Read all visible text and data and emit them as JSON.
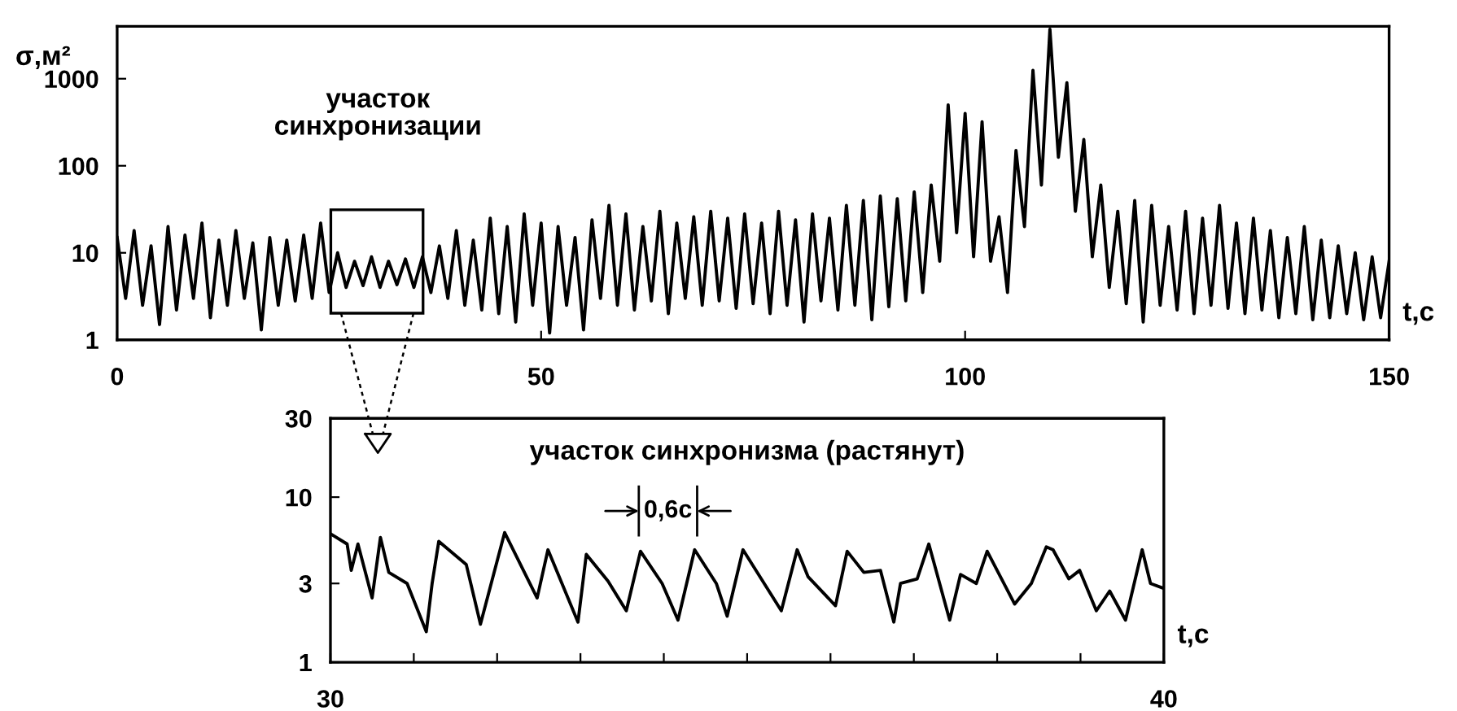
{
  "chart_data": [
    {
      "type": "line",
      "xlabel": "t,с",
      "ylabel": "σ,м²",
      "log": "y",
      "xlim": [
        0,
        150
      ],
      "xticks": [
        0,
        50,
        100,
        150
      ],
      "ylim": [
        1,
        4000
      ],
      "yticks": [
        1,
        10,
        100,
        1000
      ],
      "annotations": [
        "участок\nсинхронизации"
      ],
      "x": [
        0,
        1,
        2,
        3,
        4,
        5,
        6,
        7,
        8,
        9,
        10,
        11,
        12,
        13,
        14,
        15,
        16,
        17,
        18,
        19,
        20,
        21,
        22,
        23,
        24,
        25,
        26,
        27,
        28,
        29,
        30,
        31,
        32,
        33,
        34,
        35,
        36,
        37,
        38,
        39,
        40,
        41,
        42,
        43,
        44,
        45,
        46,
        47,
        48,
        49,
        50,
        51,
        52,
        53,
        54,
        55,
        56,
        57,
        58,
        59,
        60,
        61,
        62,
        63,
        64,
        65,
        66,
        67,
        68,
        69,
        70,
        71,
        72,
        73,
        74,
        75,
        76,
        77,
        78,
        79,
        80,
        81,
        82,
        83,
        84,
        85,
        86,
        87,
        88,
        89,
        90,
        91,
        92,
        93,
        94,
        95,
        96,
        97,
        98,
        99,
        100,
        101,
        102,
        103,
        104,
        105,
        106,
        107,
        108,
        109,
        110,
        111,
        112,
        113,
        114,
        115,
        116,
        117,
        118,
        119,
        120,
        121,
        122,
        123,
        124,
        125,
        126,
        127,
        128,
        129,
        130,
        131,
        132,
        133,
        134,
        135,
        136,
        137,
        138,
        139,
        140,
        141,
        142,
        143,
        144,
        145,
        146,
        147,
        148,
        149,
        150
      ],
      "series": [
        {
          "color": "#000000",
          "values": [
            15,
            3,
            18,
            2.5,
            12,
            1.5,
            20,
            2.2,
            16,
            3,
            22,
            1.8,
            14,
            2.5,
            18,
            3,
            13,
            1.3,
            15,
            2.5,
            14,
            2.8,
            16,
            3,
            22,
            3.5,
            10,
            4,
            8,
            4.2,
            9,
            4,
            8,
            4.3,
            8.5,
            4,
            9,
            3.5,
            12,
            3,
            18,
            2.5,
            14,
            2.2,
            25,
            2,
            20,
            1.6,
            28,
            2.5,
            22,
            1.2,
            20,
            2.5,
            15,
            1.3,
            24,
            3,
            35,
            2.5,
            28,
            2.2,
            20,
            2.8,
            30,
            2,
            22,
            3,
            26,
            2.5,
            30,
            2.8,
            25,
            2.3,
            28,
            2.6,
            22,
            2,
            30,
            2.5,
            24,
            1.6,
            28,
            2.8,
            25,
            2.2,
            35,
            2.5,
            40,
            1.7,
            45,
            2.4,
            42,
            2.8,
            50,
            3.5,
            60,
            8,
            500,
            17,
            400,
            9,
            320,
            8,
            26,
            3.5,
            150,
            20,
            1250,
            60,
            3700,
            125,
            900,
            30,
            200,
            9,
            60,
            4,
            30,
            2.6,
            40,
            1.6,
            35,
            2.5,
            20,
            2.2,
            30,
            2,
            25,
            2.5,
            35,
            2.3,
            22,
            2,
            25,
            2.2,
            18,
            1.8,
            15,
            2,
            20,
            1.7,
            14,
            1.8,
            12,
            2,
            10,
            1.7,
            9,
            1.8,
            8
          ]
        }
      ]
    },
    {
      "type": "line",
      "xlabel": "t,с",
      "log": "y",
      "xlim": [
        30,
        40
      ],
      "xticks": [
        30,
        {
          "value": 31,
          "label": null
        },
        {
          "value": 32,
          "label": null
        },
        {
          "value": 33,
          "label": null
        },
        {
          "value": 34,
          "label": null
        },
        {
          "value": 35,
          "label": null
        },
        {
          "value": 36,
          "label": null
        },
        {
          "value": 37,
          "label": null
        },
        {
          "value": 38,
          "label": null
        },
        {
          "value": 39,
          "label": null
        },
        40
      ],
      "ylim": [
        1,
        30
      ],
      "yticks": [
        1,
        3,
        10,
        30
      ],
      "annotations": [
        "участок синхронизма (растянут)",
        "0,6с"
      ],
      "x": [
        30.0,
        30.2,
        30.25,
        30.33,
        30.5,
        30.6,
        30.7,
        30.92,
        31.15,
        31.22,
        31.3,
        31.63,
        31.8,
        32.09,
        32.48,
        32.61,
        32.97,
        33.07,
        33.33,
        33.55,
        33.72,
        33.98,
        34.17,
        34.37,
        34.63,
        34.76,
        34.95,
        35.41,
        35.6,
        35.73,
        36.06,
        36.2,
        36.4,
        36.6,
        36.76,
        36.84,
        37.04,
        37.18,
        37.43,
        37.56,
        37.75,
        37.88,
        38.21,
        38.41,
        38.59,
        38.67,
        38.86,
        38.99,
        39.19,
        39.35,
        39.54,
        39.74,
        39.84,
        40.0
      ],
      "series": [
        {
          "color": "#000000",
          "values": [
            6.0,
            5.2,
            3.6,
            5.2,
            2.45,
            5.7,
            3.5,
            3.0,
            1.53,
            3.0,
            5.4,
            3.9,
            1.7,
            6.1,
            2.45,
            4.8,
            1.75,
            4.5,
            3.1,
            2.05,
            4.7,
            3.0,
            1.8,
            4.8,
            3.0,
            1.9,
            4.8,
            2.05,
            4.8,
            3.3,
            2.2,
            4.7,
            3.5,
            3.6,
            1.75,
            3.0,
            3.2,
            5.2,
            1.8,
            3.4,
            3.0,
            4.7,
            2.25,
            3.0,
            5.0,
            4.8,
            3.2,
            3.6,
            2.05,
            2.7,
            1.8,
            4.8,
            3.0,
            2.8
          ]
        }
      ]
    }
  ]
}
